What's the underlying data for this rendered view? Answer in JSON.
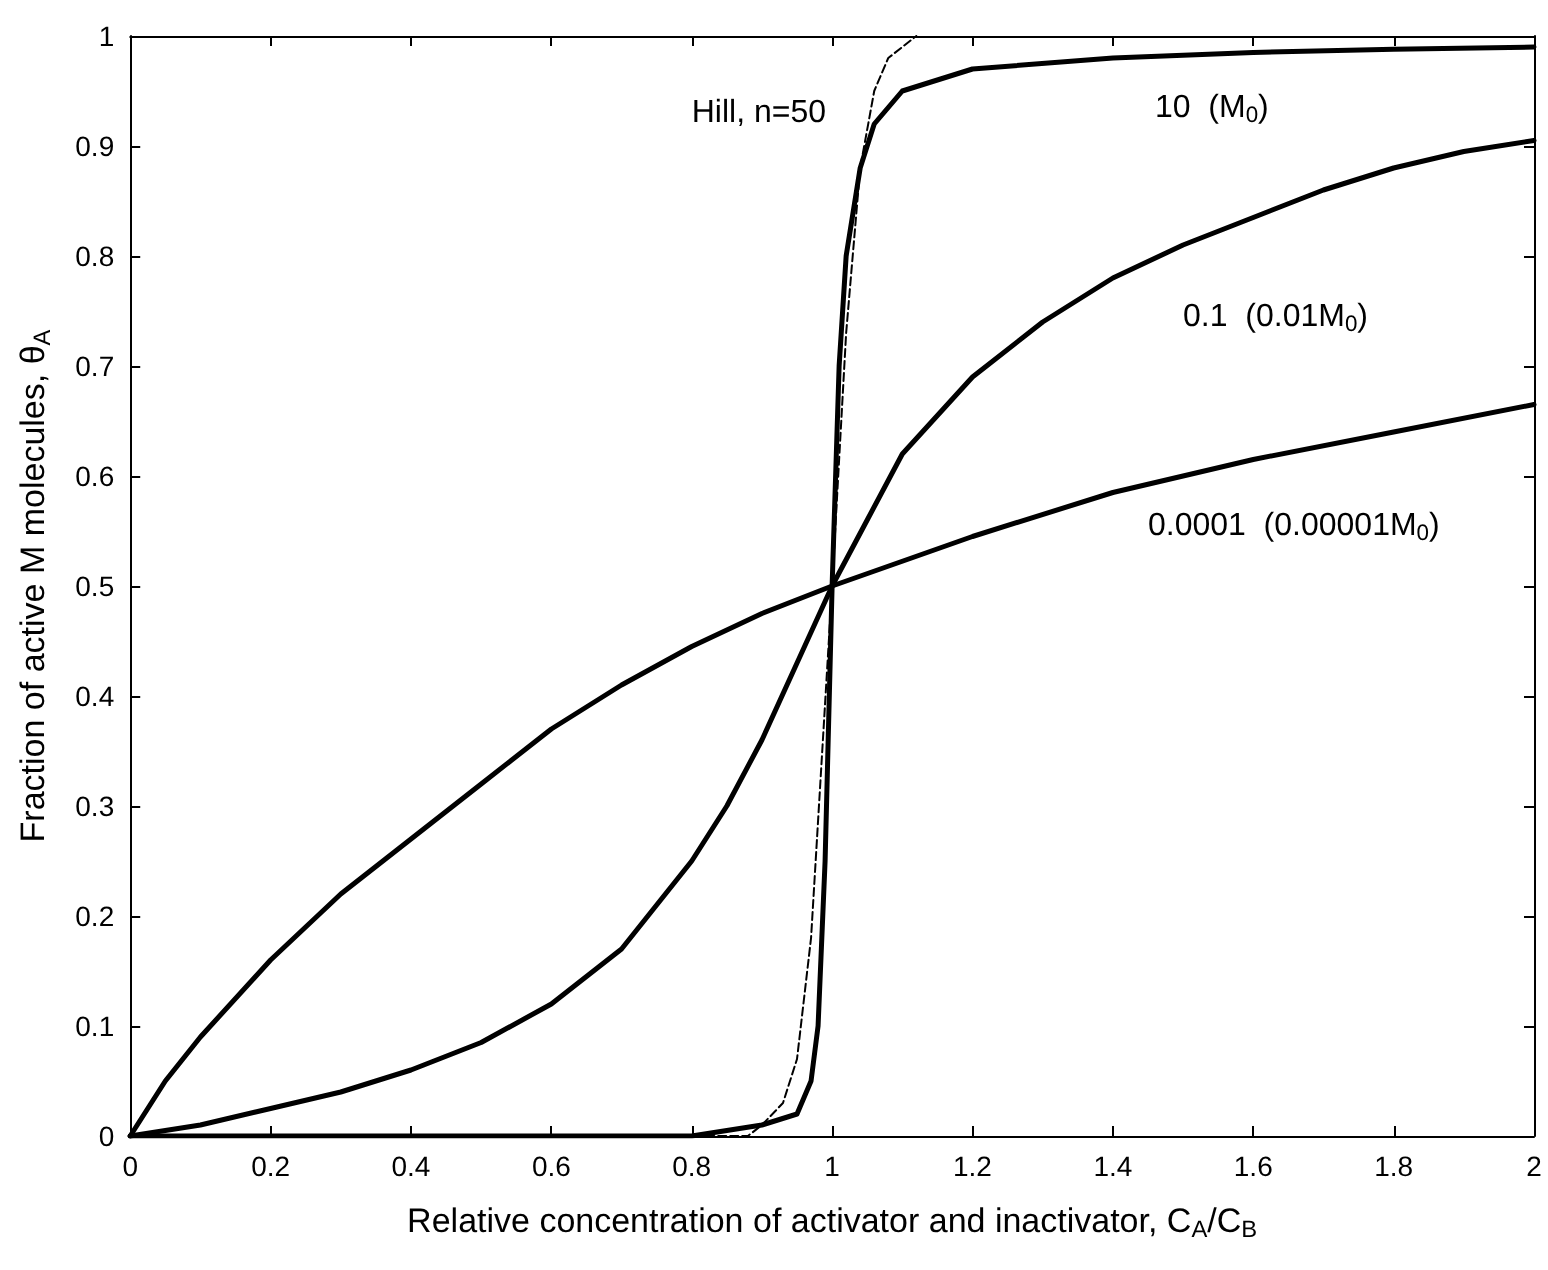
{
  "chart_data": {
    "type": "line",
    "xlabel": "Relative concentration of activator and inactivator, C$_{A}$/C$_{B}$",
    "ylabel": "Fraction of active M molecules, θ$_{A}$",
    "xlim": [
      0,
      2
    ],
    "xticks": [
      0,
      0.2,
      0.4,
      0.6,
      0.8,
      1,
      1.2,
      1.4,
      1.6,
      1.8,
      2
    ],
    "ylim": [
      0,
      1
    ],
    "yticks": [
      0,
      0.1,
      0.2,
      0.3,
      0.4,
      0.5,
      0.6,
      0.7,
      0.8,
      0.9,
      1
    ],
    "grid": false,
    "legend": false,
    "marker": "none",
    "series": [
      {
        "name": "Hill, n=50",
        "color": "#000000",
        "line_style": "dashed",
        "x": [
          0,
          0.8,
          0.88,
          0.9,
          0.93,
          0.95,
          0.97,
          1,
          1.02,
          1.04,
          1.06,
          1.08,
          1.1,
          1.12
        ],
        "values": [
          0,
          0,
          0,
          0.01,
          0.03,
          0.07,
          0.18,
          0.5,
          0.73,
          0.88,
          0.95,
          0.98,
          0.99,
          1
        ]
      },
      {
        "name": "10  (M$_{0}$)",
        "color": "#000000",
        "line_style": "solid",
        "x": [
          0,
          0.5,
          0.8,
          0.9,
          0.95,
          0.97,
          0.98,
          0.99,
          1,
          1.01,
          1.02,
          1.04,
          1.06,
          1.1,
          1.2,
          1.4,
          1.6,
          1.8,
          2
        ],
        "values": [
          0,
          0,
          0,
          0.01,
          0.02,
          0.05,
          0.1,
          0.25,
          0.5,
          0.7,
          0.8,
          0.88,
          0.92,
          0.95,
          0.97,
          0.98,
          0.985,
          0.988,
          0.99
        ]
      },
      {
        "name": "0.1  (0.01M$_{0}$)",
        "color": "#000000",
        "line_style": "solid",
        "x": [
          0,
          0.1,
          0.2,
          0.3,
          0.4,
          0.5,
          0.6,
          0.7,
          0.8,
          0.85,
          0.9,
          0.95,
          1,
          1.05,
          1.1,
          1.2,
          1.3,
          1.4,
          1.5,
          1.6,
          1.7,
          1.8,
          1.9,
          2
        ],
        "values": [
          0,
          0.01,
          0.025,
          0.04,
          0.06,
          0.085,
          0.12,
          0.17,
          0.25,
          0.3,
          0.36,
          0.43,
          0.5,
          0.56,
          0.62,
          0.69,
          0.74,
          0.78,
          0.81,
          0.835,
          0.86,
          0.88,
          0.895,
          0.905
        ]
      },
      {
        "name": "0.0001  (0.00001M$_{0}$)",
        "color": "#000000",
        "line_style": "solid",
        "x": [
          0,
          0.05,
          0.1,
          0.2,
          0.3,
          0.4,
          0.5,
          0.6,
          0.7,
          0.8,
          0.9,
          1,
          1.2,
          1.4,
          1.6,
          1.8,
          2
        ],
        "values": [
          0,
          0.05,
          0.09,
          0.16,
          0.22,
          0.27,
          0.32,
          0.37,
          0.41,
          0.445,
          0.475,
          0.5,
          0.545,
          0.585,
          0.615,
          0.64,
          0.665
        ]
      }
    ]
  }
}
